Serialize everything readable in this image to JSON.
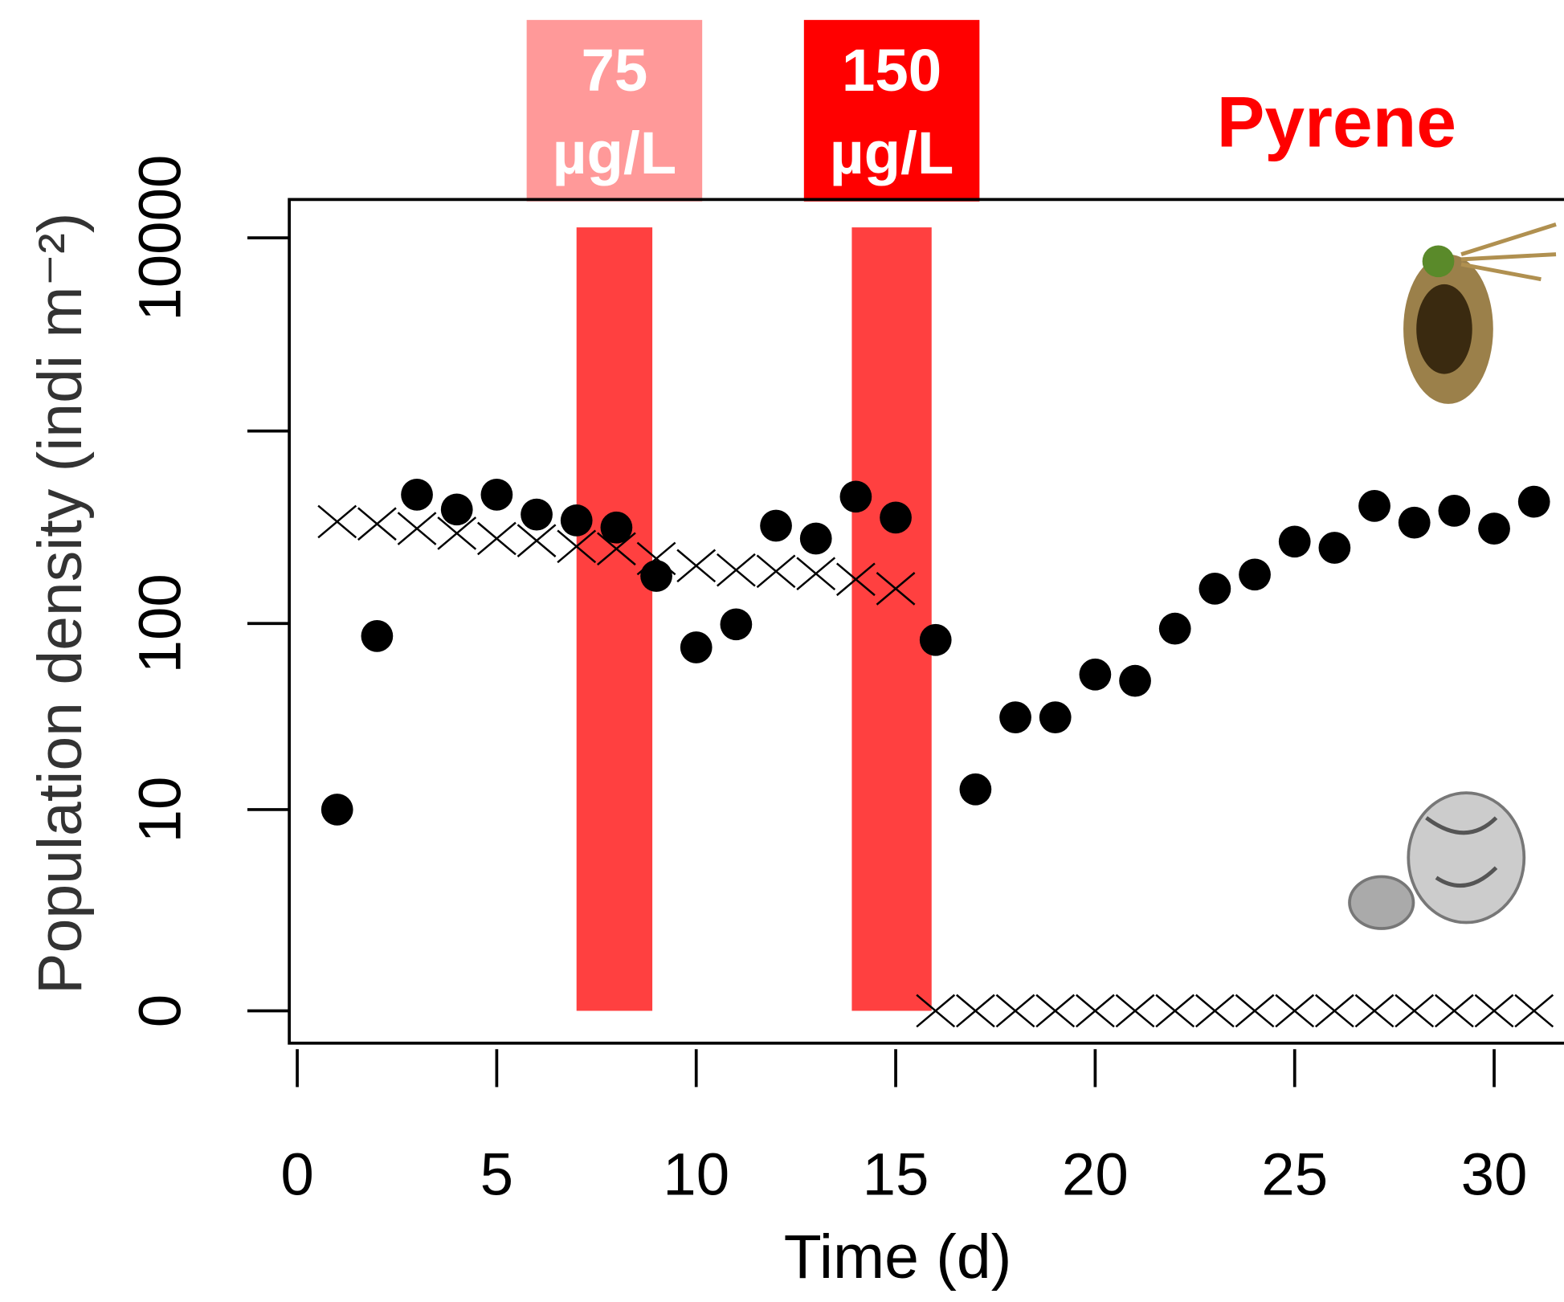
{
  "chart_data": {
    "type": "scatter",
    "title": "Pyrene",
    "x_label": "Time (d)",
    "y_label": "Population density (indi m⁻²)",
    "yscale": "log10(y+1)",
    "xlim": [
      -0.2,
      31.75
    ],
    "ylim": [
      -0.32,
      15800
    ],
    "xticks": [
      0,
      5,
      10,
      15,
      20,
      25,
      30
    ],
    "yticks": [
      0,
      10,
      100,
      {
        "value": 1000,
        "label": null
      },
      10000
    ],
    "x": [
      1,
      2,
      3,
      4,
      5,
      6,
      7,
      8,
      9,
      10,
      11,
      12,
      13,
      14,
      15,
      16,
      17,
      18,
      19,
      20,
      21,
      22,
      23,
      24,
      25,
      26,
      27,
      28,
      29,
      30,
      31
    ],
    "series": [
      {
        "marker": "circle",
        "color": "#000000",
        "values": [
          10,
          86,
          468,
          392,
          468,
          369,
          344,
          316,
          177,
          75,
          99,
          323,
          277,
          457,
          356,
          82,
          13,
          32,
          32,
          54,
          50,
          94,
          152,
          180,
          267,
          248,
          409,
          335,
          386,
          312,
          430
        ]
      },
      {
        "marker": "x",
        "color": "#000000",
        "values": [
          339,
          330,
          312,
          295,
          277,
          270,
          252,
          245,
          218,
          200,
          190,
          187,
          182,
          170,
          152,
          0,
          0,
          0,
          0,
          0,
          0,
          0,
          0,
          0,
          0,
          0,
          0,
          0,
          0,
          0,
          0
        ]
      }
    ],
    "exposures": [
      {
        "value": "75",
        "unit": "µg/L",
        "span": [
          7,
          8.9
        ],
        "color": "#ff4040",
        "label_color": "#ff9999"
      },
      {
        "value": "150",
        "unit": "µg/L",
        "span": [
          13.9,
          15.9
        ],
        "color": "#ff4040",
        "label_color": "#ff0000"
      }
    ]
  }
}
